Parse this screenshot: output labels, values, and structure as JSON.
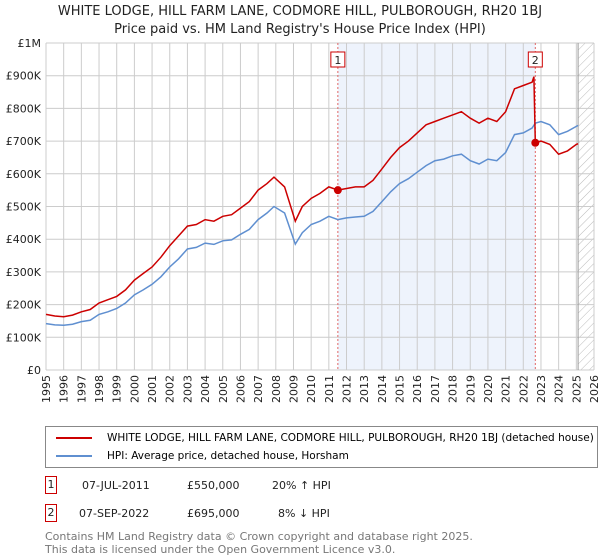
{
  "chart_data": {
    "type": "line",
    "title": "WHITE LODGE, HILL FARM LANE, CODMORE HILL, PULBOROUGH, RH20 1BJ",
    "subtitle": "Price paid vs. HM Land Registry's House Price Index (HPI)",
    "xlim": [
      1995,
      2026
    ],
    "ylim": [
      0,
      1000000
    ],
    "x_ticks": [
      "1995",
      "1996",
      "1997",
      "1998",
      "1999",
      "2000",
      "2001",
      "2002",
      "2003",
      "2004",
      "2005",
      "2006",
      "2007",
      "2008",
      "2009",
      "2010",
      "2011",
      "2012",
      "2013",
      "2014",
      "2015",
      "2016",
      "2017",
      "2018",
      "2019",
      "2020",
      "2021",
      "2022",
      "2023",
      "2024",
      "2025",
      "2026"
    ],
    "y_ticks": [
      {
        "v": 0,
        "label": "£0"
      },
      {
        "v": 100000,
        "label": "£100K"
      },
      {
        "v": 200000,
        "label": "£200K"
      },
      {
        "v": 300000,
        "label": "£300K"
      },
      {
        "v": 400000,
        "label": "£400K"
      },
      {
        "v": 500000,
        "label": "£500K"
      },
      {
        "v": 600000,
        "label": "£600K"
      },
      {
        "v": 700000,
        "label": "£700K"
      },
      {
        "v": 800000,
        "label": "£800K"
      },
      {
        "v": 900000,
        "label": "£900K"
      },
      {
        "v": 1000000,
        "label": "£1M"
      }
    ],
    "grid": true,
    "shaded_range": [
      2011.51,
      2022.68
    ],
    "future_hatch_from": 2025.1,
    "series": [
      {
        "name": "WHITE LODGE, HILL FARM LANE, CODMORE HILL, PULBOROUGH, RH20 1BJ (detached house)",
        "color": "#cc0000",
        "x": [
          1995,
          1995.5,
          1996,
          1996.5,
          1997,
          1997.5,
          1998,
          1998.5,
          1999,
          1999.5,
          2000,
          2000.5,
          2001,
          2001.5,
          2002,
          2002.5,
          2003,
          2003.5,
          2004,
          2004.5,
          2005,
          2005.5,
          2006,
          2006.5,
          2007,
          2007.5,
          2007.9,
          2008.5,
          2009.1,
          2009.5,
          2010,
          2010.5,
          2011,
          2011.51,
          2012,
          2012.5,
          2013,
          2013.5,
          2014,
          2014.5,
          2015,
          2015.5,
          2016,
          2016.5,
          2017,
          2017.5,
          2018,
          2018.5,
          2019,
          2019.5,
          2020,
          2020.5,
          2021,
          2021.5,
          2022,
          2022.5,
          2022.6,
          2022.68,
          2023,
          2023.5,
          2024,
          2024.5,
          2025,
          2025.1
        ],
        "y": [
          170000,
          165000,
          163000,
          168000,
          178000,
          185000,
          205000,
          215000,
          225000,
          245000,
          275000,
          295000,
          315000,
          345000,
          380000,
          410000,
          440000,
          445000,
          460000,
          455000,
          470000,
          475000,
          495000,
          515000,
          550000,
          570000,
          590000,
          560000,
          455000,
          500000,
          525000,
          540000,
          560000,
          550000,
          555000,
          560000,
          560000,
          580000,
          615000,
          650000,
          680000,
          700000,
          725000,
          750000,
          760000,
          770000,
          780000,
          790000,
          770000,
          755000,
          770000,
          760000,
          790000,
          860000,
          870000,
          880000,
          897000,
          695000,
          700000,
          690000,
          660000,
          670000,
          690000,
          692000
        ]
      },
      {
        "name": "HPI: Average price, detached house, Horsham",
        "color": "#5f8fd0",
        "x": [
          1995,
          1995.5,
          1996,
          1996.5,
          1997,
          1997.5,
          1998,
          1998.5,
          1999,
          1999.5,
          2000,
          2000.5,
          2001,
          2001.5,
          2002,
          2002.5,
          2003,
          2003.5,
          2004,
          2004.5,
          2005,
          2005.5,
          2006,
          2006.5,
          2007,
          2007.5,
          2007.9,
          2008.5,
          2009.1,
          2009.5,
          2010,
          2010.5,
          2011,
          2011.51,
          2012,
          2012.5,
          2013,
          2013.5,
          2014,
          2014.5,
          2015,
          2015.5,
          2016,
          2016.5,
          2017,
          2017.5,
          2018,
          2018.5,
          2019,
          2019.5,
          2020,
          2020.5,
          2021,
          2021.5,
          2022,
          2022.5,
          2022.68,
          2023,
          2023.5,
          2024,
          2024.5,
          2025,
          2025.1
        ],
        "y": [
          142000,
          138000,
          137000,
          140000,
          148000,
          152000,
          170000,
          178000,
          188000,
          205000,
          230000,
          245000,
          262000,
          285000,
          315000,
          340000,
          370000,
          375000,
          388000,
          384000,
          395000,
          398000,
          415000,
          430000,
          460000,
          480000,
          500000,
          480000,
          385000,
          420000,
          445000,
          455000,
          470000,
          460000,
          465000,
          468000,
          470000,
          485000,
          515000,
          545000,
          570000,
          585000,
          605000,
          625000,
          640000,
          645000,
          655000,
          660000,
          640000,
          630000,
          645000,
          640000,
          665000,
          720000,
          725000,
          740000,
          755000,
          760000,
          750000,
          720000,
          730000,
          745000,
          748000
        ]
      }
    ],
    "sales": [
      {
        "label": "1",
        "x": 2011.51,
        "y": 550000,
        "date": "07-JUL-2011",
        "price": "£550,000",
        "hpi": "20% ↑ HPI"
      },
      {
        "label": "2",
        "x": 2022.68,
        "y": 695000,
        "date": "07-SEP-2022",
        "price": "£695,000",
        "hpi": "8% ↓ HPI"
      }
    ]
  },
  "footer": {
    "line1": "Contains HM Land Registry data © Crown copyright and database right 2025.",
    "line2": "This data is licensed under the Open Government Licence v3.0."
  }
}
